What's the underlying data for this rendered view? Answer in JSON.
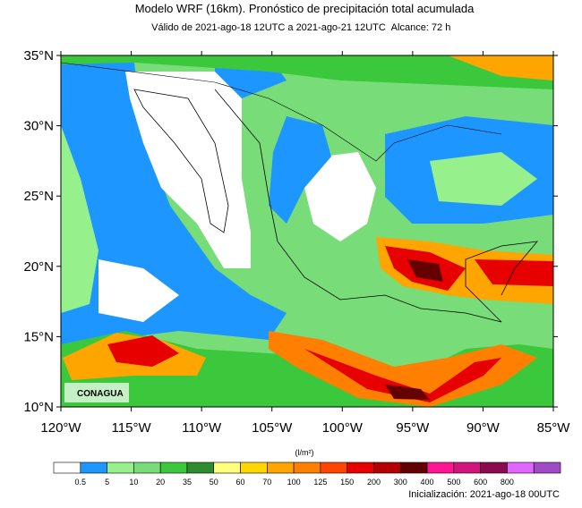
{
  "header": {
    "title": "Modelo WRF (16km). Pronóstico de precipitación total acumulada",
    "valid": "Válido de 2021-ago-18 12UTC a 2021-ago-21 12UTC",
    "range": "Alcance: 72 h"
  },
  "map": {
    "lat_labels": [
      "10°N",
      "15°N",
      "20°N",
      "25°N",
      "30°N",
      "35°N"
    ],
    "lon_labels": [
      "120°W",
      "115°W",
      "110°W",
      "105°W",
      "100°W",
      "95°W",
      "90°W",
      "85°W"
    ],
    "logo": "CONAGUA"
  },
  "colorbar": {
    "unit": "(l/m²)",
    "labels": [
      "0.5",
      "5",
      "10",
      "20",
      "35",
      "50",
      "60",
      "70",
      "100",
      "125",
      "150",
      "200",
      "300",
      "400",
      "500",
      "600",
      "800"
    ],
    "colors": [
      "#ffffff",
      "#1e96ff",
      "#96f08c",
      "#78dc78",
      "#3cc83c",
      "#2d8c2d",
      "#ffff7f",
      "#ffd700",
      "#ffa500",
      "#ff7f00",
      "#ff4500",
      "#e60000",
      "#b40000",
      "#640000",
      "#ff1493",
      "#d2147d",
      "#8b0a50",
      "#e066ff",
      "#a04ac8"
    ]
  },
  "footer": {
    "init": "Inicialización: 2021-ago-18 00UTC"
  }
}
